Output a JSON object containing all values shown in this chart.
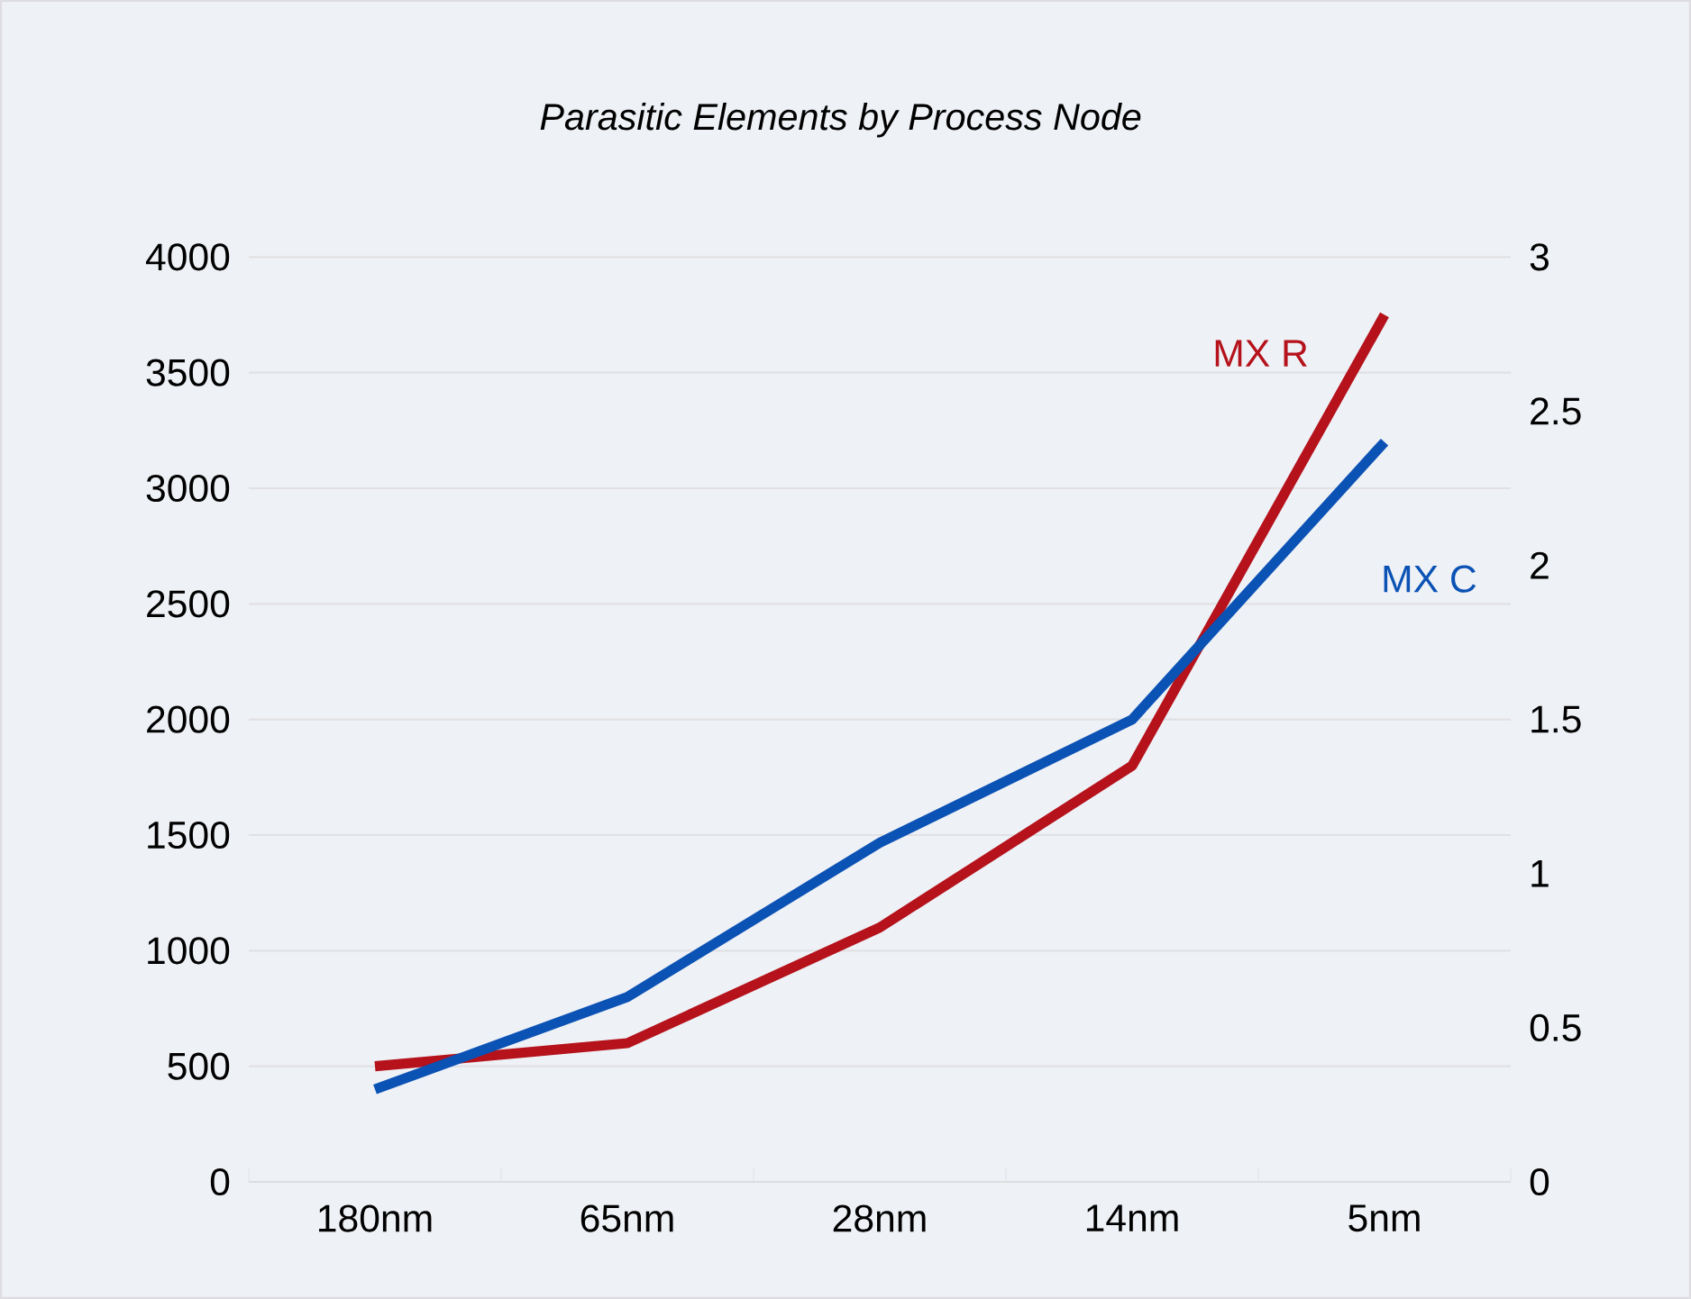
{
  "chart_data": {
    "type": "line",
    "title": "*Parasitic Elements by Process Node*",
    "categories": [
      "180nm",
      "65nm",
      "28nm",
      "14nm",
      "5nm"
    ],
    "series": [
      {
        "name": "MX R",
        "color": "#b5121b",
        "values": [
          500,
          600,
          1100,
          1800,
          3750
        ]
      },
      {
        "name": "MX C",
        "color": "#0b52b5",
        "axis": "y2",
        "values": [
          0.3,
          0.6,
          1.1,
          1.5,
          2.4
        ]
      }
    ],
    "ylim": [
      0,
      4000
    ],
    "yticks": [
      0,
      500,
      1000,
      1500,
      2000,
      2500,
      3000,
      3500,
      4000
    ],
    "y2lim": [
      0,
      3
    ],
    "y2ticks": [
      0,
      0.5,
      1,
      1.5,
      2,
      2.5,
      3
    ],
    "grid": "y",
    "legend": false,
    "marker": "none",
    "line_style": "solid"
  }
}
